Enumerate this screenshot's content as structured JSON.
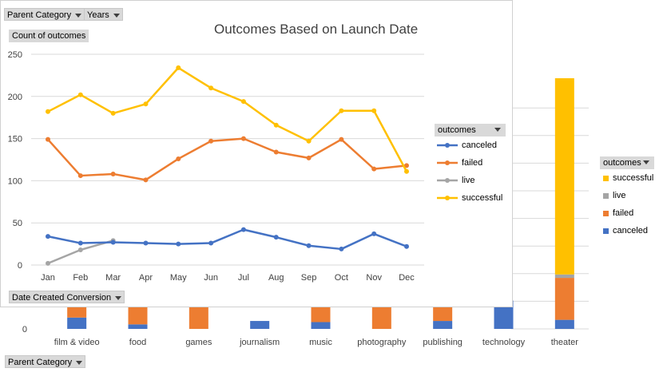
{
  "front_chart": {
    "title": "Outcomes Based on Launch Date",
    "ylabel": "Count of outcomes",
    "axis_field_label": "Date Created Conversion",
    "filters": [
      "Parent Category",
      "Years"
    ],
    "legend_title": "outcomes",
    "legend_position": "right",
    "colors": {
      "canceled": "#4472c4",
      "failed": "#ed7d31",
      "live": "#a5a5a5",
      "successful": "#ffc000"
    }
  },
  "back_chart": {
    "filter_label": "Parent Category",
    "legend_title": "outcomes",
    "colors": {
      "successful": "#ffc000",
      "live": "#a5a5a5",
      "failed": "#ed7d31",
      "canceled": "#4472c4"
    }
  },
  "chart_data": [
    {
      "type": "line",
      "title": "Outcomes Based on Launch Date",
      "ylabel": "Count of outcomes",
      "xlabel": "",
      "x": [
        "Jan",
        "Feb",
        "Mar",
        "Apr",
        "May",
        "Jun",
        "Jul",
        "Aug",
        "Sep",
        "Oct",
        "Nov",
        "Dec"
      ],
      "ylim": [
        0,
        250
      ],
      "yticks": [
        0,
        50,
        100,
        150,
        200,
        250
      ],
      "grid": true,
      "legend": "right",
      "series": [
        {
          "name": "canceled",
          "values": [
            34,
            26,
            27,
            26,
            25,
            26,
            42,
            33,
            23,
            19,
            37,
            22
          ]
        },
        {
          "name": "failed",
          "values": [
            149,
            106,
            108,
            101,
            126,
            147,
            150,
            134,
            127,
            149,
            114,
            118
          ]
        },
        {
          "name": "live",
          "values": [
            2,
            18,
            29,
            null,
            null,
            null,
            null,
            null,
            null,
            null,
            null,
            null
          ]
        },
        {
          "name": "successful",
          "values": [
            182,
            202,
            180,
            191,
            234,
            210,
            194,
            166,
            147,
            183,
            183,
            111
          ]
        }
      ]
    },
    {
      "type": "bar",
      "stacked": true,
      "categories": [
        "film & video",
        "food",
        "games",
        "journalism",
        "music",
        "photography",
        "publishing",
        "technology",
        "theater"
      ],
      "y_ticks_visible": [
        0
      ],
      "ylim": [
        0,
        250
      ],
      "legend": "right",
      "series": [
        {
          "name": "canceled",
          "values": [
            10,
            4,
            0,
            7,
            6,
            0,
            7,
            25,
            8
          ]
        },
        {
          "name": "failed",
          "values": [
            15,
            21,
            25,
            0,
            19,
            25,
            18,
            0,
            37
          ]
        },
        {
          "name": "live",
          "values": [
            0,
            0,
            0,
            0,
            0,
            0,
            0,
            0,
            3
          ]
        },
        {
          "name": "successful",
          "values": [
            0,
            0,
            0,
            0,
            0,
            0,
            0,
            0,
            173
          ]
        }
      ]
    }
  ]
}
